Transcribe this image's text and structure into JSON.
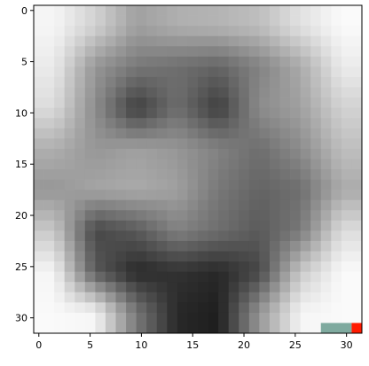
{
  "chart_data": {
    "type": "heatmap",
    "title": "",
    "xlabel": "",
    "ylabel": "",
    "colormap": "gray",
    "xlim": [
      -0.5,
      31.5
    ],
    "ylim": [
      31.5,
      -0.5
    ],
    "x_ticks": [
      0,
      5,
      10,
      15,
      20,
      25,
      30
    ],
    "y_ticks": [
      0,
      5,
      10,
      15,
      20,
      25,
      30
    ],
    "grid": false,
    "rows": 32,
    "cols": 32,
    "pixels_coarse_4x4": [
      [
        245,
        210,
        160,
        175,
        180,
        190,
        225,
        250
      ],
      [
        235,
        150,
        120,
        110,
        100,
        130,
        170,
        235
      ],
      [
        220,
        140,
        60,
        110,
        60,
        140,
        160,
        210
      ],
      [
        175,
        150,
        160,
        150,
        130,
        110,
        140,
        190
      ],
      [
        150,
        165,
        170,
        160,
        120,
        100,
        110,
        170
      ],
      [
        200,
        70,
        90,
        130,
        110,
        90,
        120,
        220
      ],
      [
        245,
        90,
        40,
        50,
        40,
        70,
        200,
        250
      ],
      [
        250,
        245,
        120,
        40,
        30,
        150,
        245,
        250
      ]
    ],
    "overlays": [
      {
        "row": 31,
        "col_start": 27.5,
        "col_end": 30.5,
        "color": "#7faa9f"
      },
      {
        "row": 31,
        "col_start": 30.5,
        "col_end": 31.5,
        "color": "#ff1a00"
      }
    ]
  }
}
